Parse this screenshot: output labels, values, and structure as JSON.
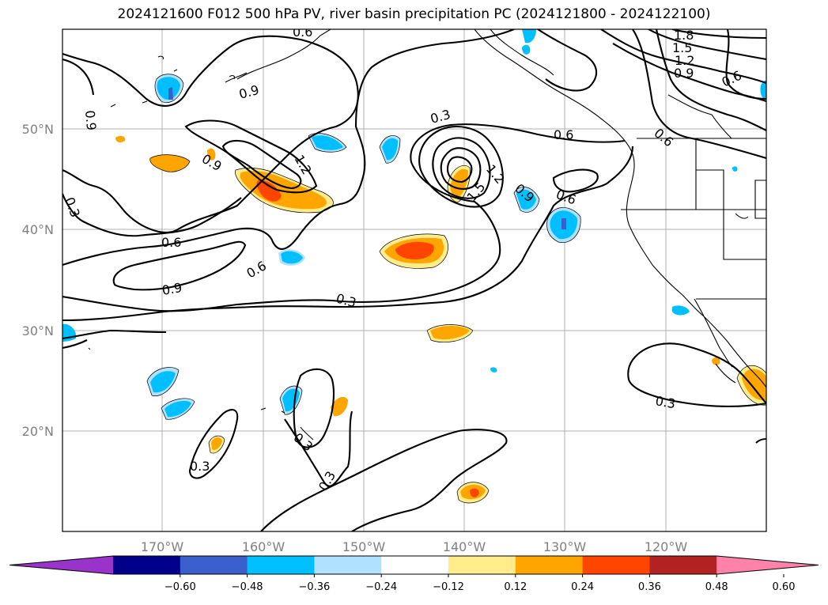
{
  "title": "2024121600 F012 500 hPa PV, river basin precipitation PC (2024121800 - 2024122100)",
  "lat_labels": [
    "50°N",
    "40°N",
    "30°N",
    "20°N"
  ],
  "lon_labels": [
    "170°W",
    "160°W",
    "150°W",
    "140°W",
    "130°W",
    "120°W"
  ],
  "colorbar": {
    "ticks": [
      "−0.60",
      "−0.48",
      "−0.36",
      "−0.24",
      "−0.12",
      "0.12",
      "0.24",
      "0.36",
      "0.48",
      "0.60"
    ],
    "colors": [
      "#9a33c9",
      "#00008b",
      "#3a5fcd",
      "#00bfff",
      "#b0e2ff",
      "#ffffff",
      "#ffec8b",
      "#ffa500",
      "#ff4500",
      "#b22222",
      "#ff82ab"
    ]
  },
  "contour_labels": [
    {
      "text": "0.9"
    },
    {
      "text": "0.9"
    },
    {
      "text": "0.9"
    },
    {
      "text": "0.9"
    },
    {
      "text": "0.9"
    },
    {
      "text": "0.9"
    },
    {
      "text": "0.6"
    },
    {
      "text": "0.6"
    },
    {
      "text": "0.6"
    },
    {
      "text": "0.6"
    },
    {
      "text": "0.6"
    },
    {
      "text": "0.6"
    },
    {
      "text": "0.6"
    },
    {
      "text": "0.3"
    },
    {
      "text": "0.3"
    },
    {
      "text": "0.3"
    },
    {
      "text": "0.3"
    },
    {
      "text": "0.3"
    },
    {
      "text": "0.3"
    },
    {
      "text": "0.3"
    },
    {
      "text": "1.2"
    },
    {
      "text": "1.2"
    },
    {
      "text": "1.2"
    },
    {
      "text": "1.5"
    },
    {
      "text": "1.5"
    },
    {
      "text": "1.8"
    }
  ]
}
